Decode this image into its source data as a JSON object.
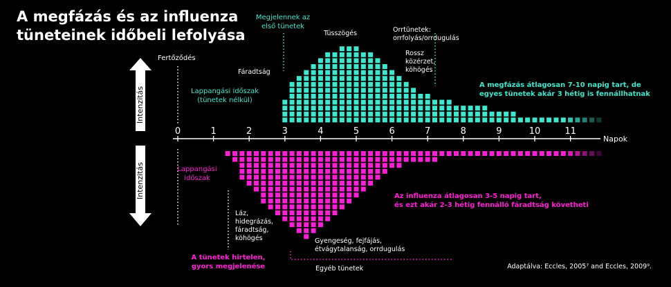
{
  "title_line1": "A megfázás és az influenza",
  "title_line2": "tüneteinek időbeli lefolyása",
  "cold": {
    "name": "Megfázás",
    "intensity_label": "Intenzitás",
    "infection_label": "Fertőződés",
    "latent_line1": "Lappangási időszak",
    "latent_line2": "(tünetek nélkül)",
    "first_symptoms_line1": "Megjelennek az",
    "first_symptoms_line2": "első tünetek",
    "fatigue": "Fáradtság",
    "sneezing": "Tüsszögés",
    "nasal_line1": "Orrtünetek:",
    "nasal_line2": "orrfolyás/orrdugulás",
    "feel_line1": "Rossz",
    "feel_line2": "közérzet,",
    "feel_line3": "köhögés",
    "note_line1": "A megfázás átlagosan 7-10 napig tart, de",
    "note_line2": "egyes tünetek akár 3 hétig is fennállhatnak"
  },
  "flu": {
    "name": "Influenza",
    "intensity_label": "Intenzitás",
    "latent_line1": "Lappangási",
    "latent_line2": "időszak",
    "sudden_line1": "A tünetek hirtelen,",
    "sudden_line2": "gyors megjelenése",
    "list_line1": "Láz,",
    "list_line2": "hidegrázás,",
    "list_line3": "fáradtság,",
    "list_line4": "köhögés",
    "weak_line1": "Gyengeség, fejfájás,",
    "weak_line2": "étvágytalanság, orrdugulás",
    "other": "Egyéb tünetek",
    "note_line1": "Az influenza átlagosan 3-5 napig tart,",
    "note_line2": "és ezt akár 2-3 hétig fennálló fáradtság követheti"
  },
  "axis_unit": "Napok",
  "source": "Adaptálva: Eccles, 2005⁷ and Eccles, 2009⁹.",
  "colors": {
    "cold": "#3ee8cf",
    "flu": "#ff1fd6",
    "background": "#000000",
    "text": "#ffffff"
  },
  "chart_data": {
    "type": "bar",
    "x_label": "Napok",
    "x_ticks": [
      0,
      1,
      2,
      3,
      4,
      5,
      6,
      7,
      8,
      9,
      10,
      11
    ],
    "xlim": [
      0,
      11.8
    ],
    "series": [
      {
        "name": "Megfázás",
        "days": [
          3.0,
          3.2,
          3.4,
          3.6,
          3.8,
          4.0,
          4.2,
          4.4,
          4.6,
          4.8,
          5.0,
          5.2,
          5.4,
          5.6,
          5.8,
          6.0,
          6.2,
          6.4,
          6.6,
          6.8,
          7.0,
          7.2,
          7.4,
          7.6,
          7.8,
          8.0,
          8.2,
          8.4,
          8.6,
          8.8,
          9.0,
          9.2,
          9.4,
          9.6,
          9.8,
          10.0,
          10.2,
          10.4,
          10.6,
          10.8,
          11.0,
          11.2,
          11.4,
          11.6,
          11.8
        ],
        "levels": [
          4,
          7,
          8,
          9,
          10,
          11,
          12,
          12,
          13,
          13,
          13,
          12,
          12,
          11,
          10,
          9,
          8,
          7,
          6,
          5,
          5,
          4,
          4,
          4,
          3,
          3,
          3,
          3,
          3,
          2,
          2,
          2,
          2,
          1,
          1,
          1,
          1,
          1,
          1,
          1,
          1,
          1,
          1,
          1,
          1
        ]
      },
      {
        "name": "Influenza",
        "days": [
          1.4,
          1.6,
          1.8,
          2.0,
          2.2,
          2.4,
          2.6,
          2.8,
          3.0,
          3.2,
          3.4,
          3.6,
          3.8,
          4.0,
          4.2,
          4.4,
          4.6,
          4.8,
          5.0,
          5.2,
          5.4,
          5.6,
          5.8,
          6.0,
          6.2,
          6.4,
          6.6,
          6.8,
          7.0,
          7.2,
          7.4,
          7.6,
          7.8,
          8.0,
          8.2,
          8.4,
          8.6,
          8.8,
          9.0,
          9.2,
          9.4,
          9.6,
          9.8,
          10.0,
          10.2,
          10.4,
          10.6,
          10.8,
          11.0,
          11.2,
          11.4,
          11.6,
          11.8
        ],
        "levels": [
          1,
          2,
          5,
          6,
          7,
          9,
          10,
          11,
          12,
          13,
          14,
          15,
          14,
          13,
          12,
          11,
          10,
          9,
          8,
          7,
          6,
          5,
          4,
          3,
          3,
          2,
          2,
          2,
          2,
          2,
          1,
          1,
          1,
          1,
          1,
          1,
          1,
          1,
          1,
          1,
          1,
          1,
          1,
          1,
          1,
          1,
          1,
          1,
          1,
          1,
          1,
          1,
          1
        ]
      }
    ]
  }
}
